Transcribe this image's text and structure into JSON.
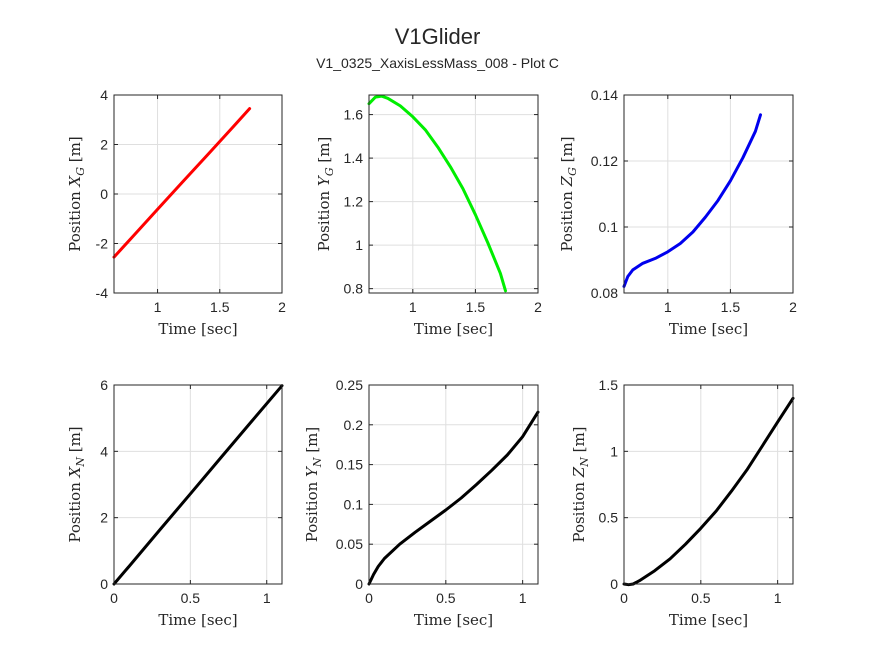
{
  "figure": {
    "title": "V1Glider",
    "subtitle": "V1_0325_XaxisLessMass_008 - Plot C"
  },
  "chart_data": [
    {
      "type": "line",
      "xlabel": "Time [sec]",
      "ylabel": "Position X",
      "ylabel_sub": "G",
      "ylabel_unit": " [m]",
      "xlim": [
        0.65,
        2
      ],
      "ylim": [
        -4,
        4
      ],
      "xticks": [
        1,
        1.5,
        2
      ],
      "xtick_labels": [
        "1",
        "1.5",
        "2"
      ],
      "yticks": [
        -4,
        -2,
        0,
        2,
        4
      ],
      "ytick_labels": [
        "-4",
        "-2",
        "0",
        "2",
        "4"
      ],
      "grid": true,
      "series": [
        {
          "color": "#ff0000",
          "x": [
            0.65,
            0.8,
            1.0,
            1.2,
            1.4,
            1.6,
            1.74
          ],
          "y": [
            -2.55,
            -1.72,
            -0.62,
            0.48,
            1.57,
            2.67,
            3.45
          ]
        }
      ]
    },
    {
      "type": "line",
      "xlabel": "Time [sec]",
      "ylabel": "Position Y",
      "ylabel_sub": "G",
      "ylabel_unit": " [m]",
      "xlim": [
        0.65,
        2
      ],
      "ylim": [
        0.78,
        1.69
      ],
      "xticks": [
        1,
        1.5,
        2
      ],
      "xtick_labels": [
        "1",
        "1.5",
        "2"
      ],
      "yticks": [
        0.8,
        1,
        1.2,
        1.4,
        1.6
      ],
      "ytick_labels": [
        "0.8",
        "1",
        "1.2",
        "1.4",
        "1.6"
      ],
      "grid": true,
      "series": [
        {
          "color": "#00ee00",
          "x": [
            0.65,
            0.7,
            0.75,
            0.8,
            0.9,
            1.0,
            1.1,
            1.2,
            1.3,
            1.4,
            1.5,
            1.6,
            1.7,
            1.74
          ],
          "y": [
            1.65,
            1.68,
            1.685,
            1.675,
            1.64,
            1.59,
            1.53,
            1.45,
            1.36,
            1.26,
            1.14,
            1.01,
            0.87,
            0.79
          ]
        }
      ]
    },
    {
      "type": "line",
      "xlabel": "Time [sec]",
      "ylabel": "Position Z",
      "ylabel_sub": "G",
      "ylabel_unit": " [m]",
      "xlim": [
        0.65,
        2
      ],
      "ylim": [
        0.08,
        0.14
      ],
      "xticks": [
        1,
        1.5,
        2
      ],
      "xtick_labels": [
        "1",
        "1.5",
        "2"
      ],
      "yticks": [
        0.08,
        0.1,
        0.12,
        0.14
      ],
      "ytick_labels": [
        "0.08",
        "0.1",
        "0.12",
        "0.14"
      ],
      "grid": true,
      "series": [
        {
          "color": "#0000ee",
          "x": [
            0.65,
            0.68,
            0.72,
            0.8,
            0.9,
            1.0,
            1.1,
            1.2,
            1.3,
            1.4,
            1.5,
            1.6,
            1.7,
            1.74
          ],
          "y": [
            0.082,
            0.085,
            0.087,
            0.089,
            0.0905,
            0.0925,
            0.095,
            0.0985,
            0.103,
            0.108,
            0.114,
            0.121,
            0.129,
            0.134
          ]
        }
      ]
    },
    {
      "type": "line",
      "xlabel": "Time [sec]",
      "ylabel": "Position X",
      "ylabel_sub": "N",
      "ylabel_unit": " [m]",
      "xlim": [
        0,
        1.1
      ],
      "ylim": [
        0,
        6
      ],
      "xticks": [
        0,
        0.5,
        1
      ],
      "xtick_labels": [
        "0",
        "0.5",
        "1"
      ],
      "yticks": [
        0,
        2,
        4,
        6
      ],
      "ytick_labels": [
        "0",
        "2",
        "4",
        "6"
      ],
      "grid": true,
      "series": [
        {
          "color": "#000000",
          "x": [
            0,
            0.1,
            0.3,
            0.5,
            0.7,
            0.9,
            1.1
          ],
          "y": [
            0,
            0.54,
            1.63,
            2.72,
            3.81,
            4.9,
            5.98
          ]
        }
      ]
    },
    {
      "type": "line",
      "xlabel": "Time [sec]",
      "ylabel": "Position Y",
      "ylabel_sub": "N",
      "ylabel_unit": " [m]",
      "xlim": [
        0,
        1.1
      ],
      "ylim": [
        0,
        0.25
      ],
      "xticks": [
        0,
        0.5,
        1
      ],
      "xtick_labels": [
        "0",
        "0.5",
        "1"
      ],
      "yticks": [
        0,
        0.05,
        0.1,
        0.15,
        0.2,
        0.25
      ],
      "ytick_labels": [
        "0",
        "0.05",
        "0.1",
        "0.15",
        "0.2",
        "0.25"
      ],
      "grid": true,
      "series": [
        {
          "color": "#000000",
          "x": [
            0,
            0.03,
            0.06,
            0.1,
            0.2,
            0.3,
            0.4,
            0.5,
            0.6,
            0.7,
            0.8,
            0.9,
            1.0,
            1.1
          ],
          "y": [
            0,
            0.012,
            0.022,
            0.032,
            0.05,
            0.065,
            0.079,
            0.093,
            0.108,
            0.125,
            0.143,
            0.162,
            0.185,
            0.216
          ]
        }
      ]
    },
    {
      "type": "line",
      "xlabel": "Time [sec]",
      "ylabel": "Position Z",
      "ylabel_sub": "N",
      "ylabel_unit": " [m]",
      "xlim": [
        0,
        1.1
      ],
      "ylim": [
        0,
        1.5
      ],
      "xticks": [
        0,
        0.5,
        1
      ],
      "xtick_labels": [
        "0",
        "0.5",
        "1"
      ],
      "yticks": [
        0,
        0.5,
        1,
        1.5
      ],
      "ytick_labels": [
        "0",
        "0.5",
        "1",
        "1.5"
      ],
      "grid": true,
      "series": [
        {
          "color": "#000000",
          "x": [
            0,
            0.03,
            0.06,
            0.1,
            0.2,
            0.3,
            0.4,
            0.5,
            0.6,
            0.7,
            0.8,
            0.9,
            1.0,
            1.1
          ],
          "y": [
            0,
            -0.005,
            0.0,
            0.025,
            0.1,
            0.19,
            0.3,
            0.42,
            0.55,
            0.7,
            0.86,
            1.04,
            1.22,
            1.4
          ]
        }
      ]
    }
  ]
}
